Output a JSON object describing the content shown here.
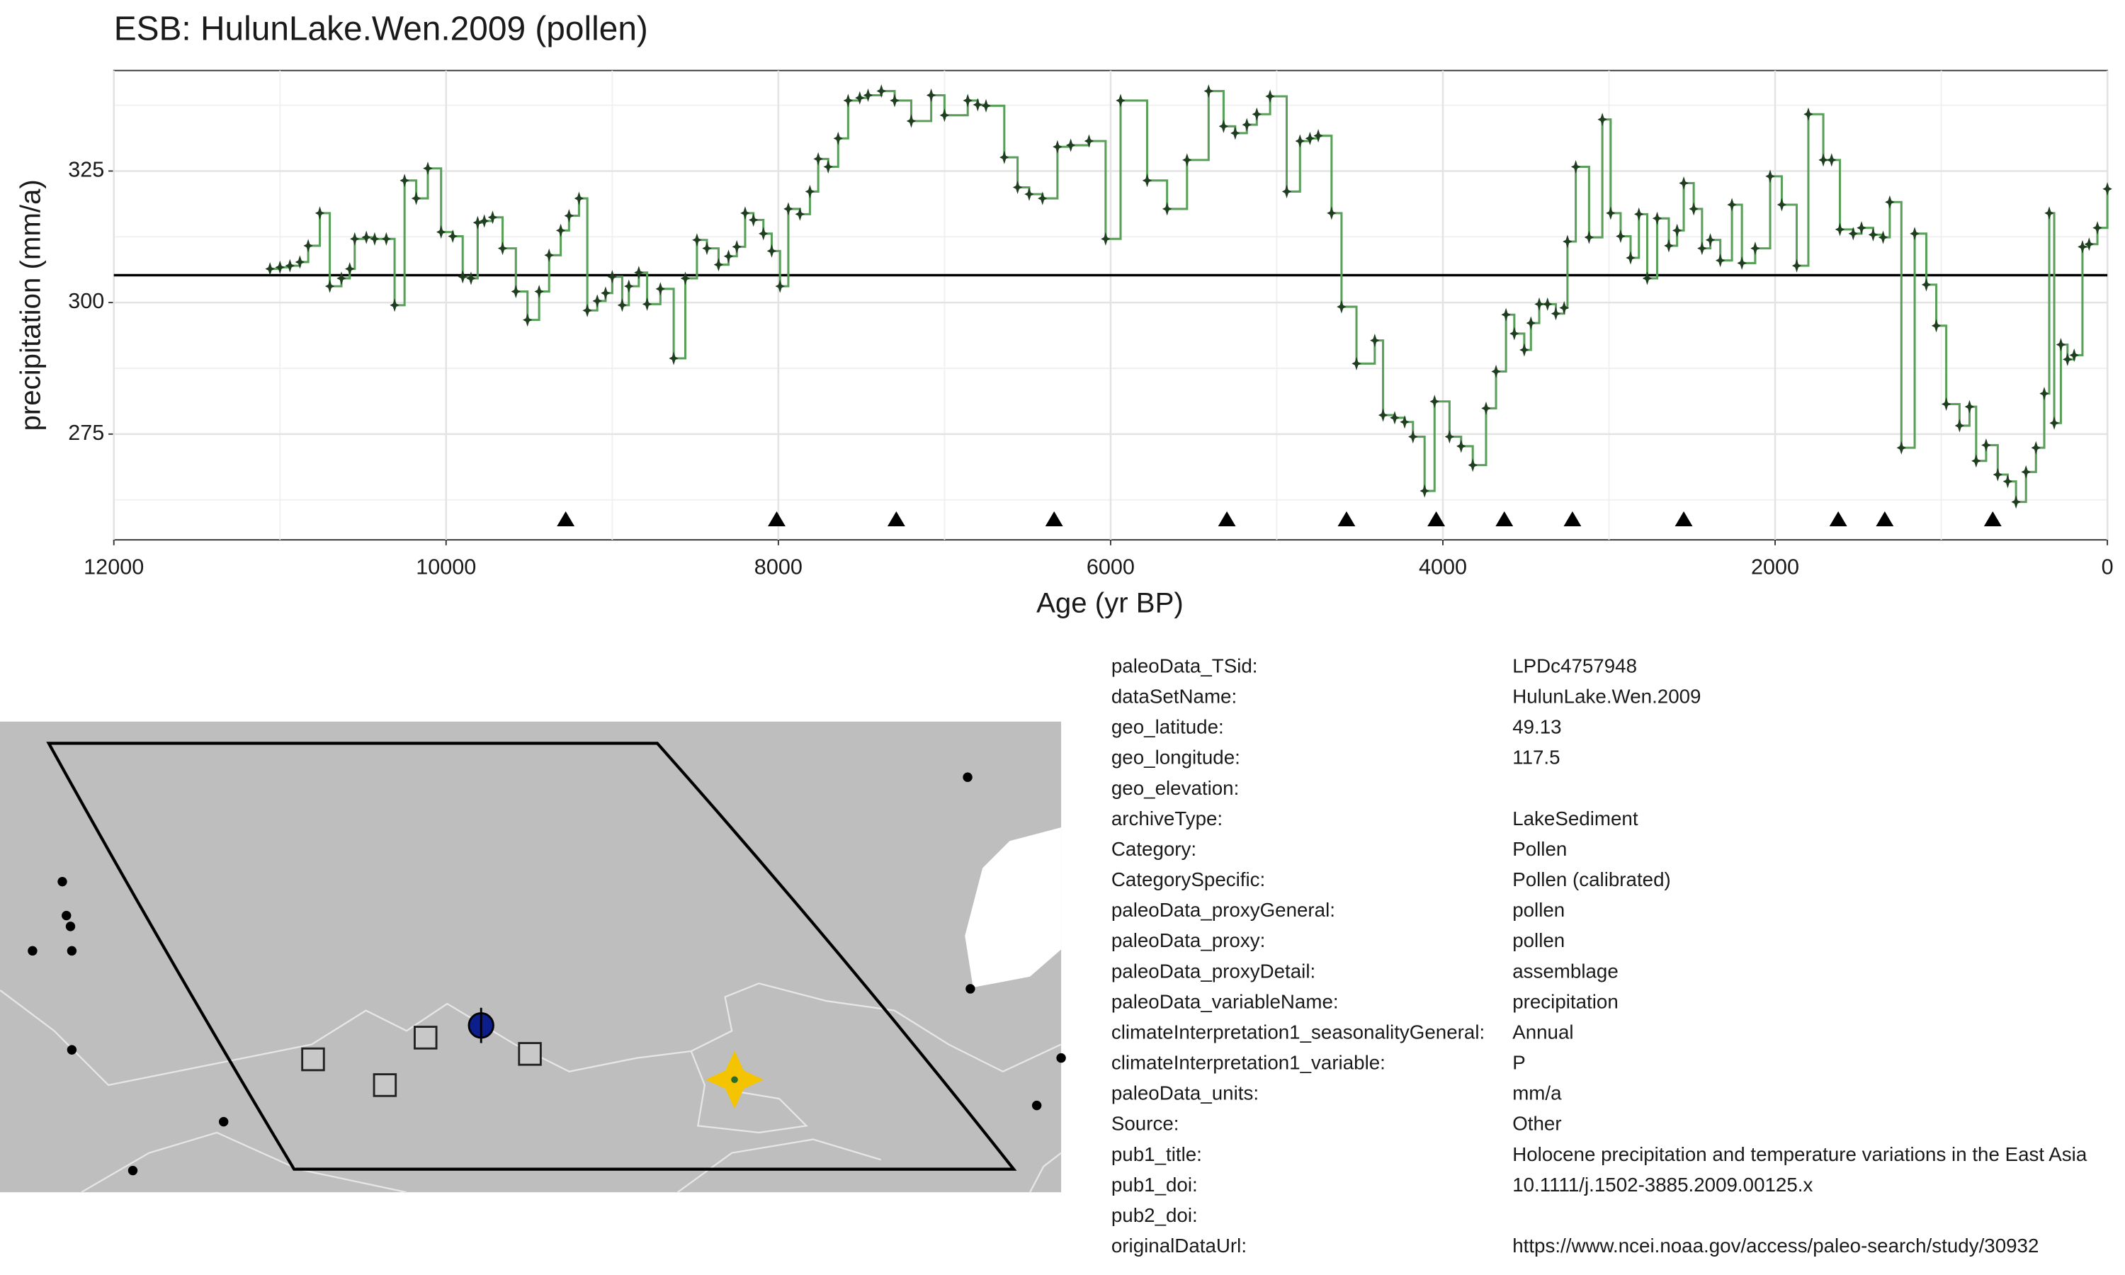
{
  "chart_data": {
    "type": "step",
    "title": "ESB: HulunLake.Wen.2009 (pollen)",
    "x_label": "Age (yr BP)",
    "y_label": "precipitation (mm/a)",
    "xlim": [
      12000,
      0
    ],
    "ylim": [
      254.9,
      344.1
    ],
    "xticks": [
      12000,
      10000,
      8000,
      6000,
      4000,
      2000,
      0
    ],
    "yticks": [
      275,
      300,
      325
    ],
    "grid": true,
    "color": "#5aa05a",
    "marker_color": "#1f3d1f",
    "hline": 305.2,
    "chronology_ages": [
      9280,
      8010,
      7290,
      6340,
      5300,
      4580,
      4040,
      3630,
      3220,
      2550,
      1620,
      1340,
      690
    ],
    "x": [
      11060,
      11000,
      10940,
      10880,
      10830,
      10760,
      10700,
      10630,
      10580,
      10550,
      10480,
      10430,
      10360,
      10310,
      10250,
      10180,
      10110,
      10030,
      9960,
      9900,
      9850,
      9810,
      9770,
      9720,
      9660,
      9580,
      9510,
      9440,
      9380,
      9310,
      9260,
      9200,
      9150,
      9090,
      9040,
      9000,
      8940,
      8900,
      8840,
      8790,
      8710,
      8630,
      8560,
      8490,
      8430,
      8360,
      8300,
      8250,
      8200,
      8150,
      8090,
      8040,
      7990,
      7940,
      7870,
      7810,
      7760,
      7700,
      7640,
      7580,
      7510,
      7460,
      7380,
      7300,
      7200,
      7080,
      7000,
      6860,
      6800,
      6750,
      6640,
      6560,
      6490,
      6410,
      6320,
      6240,
      6130,
      6030,
      5940,
      5780,
      5660,
      5540,
      5410,
      5320,
      5250,
      5180,
      5120,
      5040,
      4940,
      4860,
      4800,
      4750,
      4670,
      4610,
      4520,
      4410,
      4360,
      4290,
      4230,
      4180,
      4110,
      4050,
      3960,
      3890,
      3820,
      3740,
      3680,
      3620,
      3570,
      3510,
      3470,
      3420,
      3370,
      3320,
      3270,
      3250,
      3200,
      3120,
      3040,
      2990,
      2930,
      2870,
      2820,
      2770,
      2710,
      2640,
      2590,
      2550,
      2490,
      2440,
      2390,
      2330,
      2260,
      2200,
      2120,
      2030,
      1960,
      1870,
      1800,
      1710,
      1660,
      1610,
      1530,
      1480,
      1410,
      1350,
      1310,
      1240,
      1160,
      1090,
      1030,
      970,
      890,
      830,
      790,
      730,
      660,
      600,
      550,
      490,
      430,
      380,
      350,
      320,
      280,
      240,
      200,
      150,
      110,
      60,
      0
    ],
    "values": [
      306.4,
      306.7,
      307.0,
      307.7,
      310.8,
      317.0,
      303.1,
      304.6,
      306.4,
      312.1,
      312.4,
      312.1,
      312.1,
      299.5,
      323.2,
      319.8,
      325.5,
      313.4,
      312.6,
      304.9,
      304.6,
      315.2,
      315.5,
      316.2,
      310.3,
      302.1,
      296.7,
      302.1,
      309.0,
      313.7,
      316.5,
      319.8,
      298.5,
      300.3,
      301.8,
      304.9,
      299.5,
      303.1,
      305.7,
      299.7,
      302.6,
      289.4,
      304.6,
      311.9,
      310.3,
      307.2,
      308.8,
      310.6,
      317.0,
      315.7,
      313.1,
      309.8,
      303.1,
      317.8,
      316.8,
      321.1,
      327.3,
      325.8,
      331.2,
      338.4,
      338.9,
      339.4,
      340.2,
      338.4,
      334.5,
      339.4,
      335.6,
      338.4,
      337.6,
      337.4,
      327.6,
      321.9,
      320.6,
      319.8,
      329.6,
      329.9,
      330.7,
      312.1,
      338.4,
      323.2,
      317.8,
      327.1,
      340.2,
      333.5,
      332.2,
      333.8,
      335.8,
      339.2,
      321.1,
      330.7,
      331.2,
      331.7,
      317.0,
      299.2,
      288.4,
      292.8,
      278.6,
      278.1,
      277.3,
      274.5,
      264.2,
      281.2,
      274.5,
      272.7,
      269.1,
      279.9,
      286.9,
      297.7,
      294.1,
      291.0,
      296.1,
      299.7,
      299.7,
      297.9,
      299.0,
      311.6,
      325.8,
      312.4,
      334.8,
      317.0,
      312.6,
      308.5,
      316.8,
      304.6,
      316.0,
      310.8,
      313.7,
      322.7,
      317.8,
      310.3,
      311.9,
      308.0,
      318.6,
      307.5,
      310.3,
      324.0,
      318.6,
      307.0,
      335.8,
      327.1,
      327.1,
      313.9,
      313.1,
      314.2,
      312.9,
      312.4,
      319.1,
      272.4,
      313.1,
      303.4,
      295.6,
      280.7,
      276.6,
      280.2,
      269.9,
      272.9,
      267.3,
      266.0,
      262.1,
      267.8,
      272.4,
      282.7,
      317.0,
      277.1,
      292.0,
      289.2,
      290.0,
      310.6,
      311.1,
      314.2,
      321.6
    ]
  },
  "table": {
    "rows": [
      [
        "paleoData_TSid:",
        "LPDc4757948"
      ],
      [
        "dataSetName:",
        "HulunLake.Wen.2009"
      ],
      [
        "geo_latitude:",
        "49.13"
      ],
      [
        "geo_longitude:",
        "117.5"
      ],
      [
        "geo_elevation:"
      ],
      [
        "archiveType:",
        "LakeSediment"
      ],
      [
        "Category:",
        "Pollen"
      ],
      [
        "CategorySpecific:",
        "Pollen (calibrated)"
      ],
      [
        "paleoData_proxyGeneral:",
        "pollen"
      ],
      [
        "paleoData_proxy:",
        "pollen"
      ],
      [
        "paleoData_proxyDetail:",
        "assemblage"
      ],
      [
        "paleoData_variableName:",
        "precipitation"
      ],
      [
        "climateInterpretation1_seasonalityGeneral:",
        "Annual"
      ],
      [
        "climateInterpretation1_variable:",
        "P"
      ],
      [
        "paleoData_units:",
        "mm/a"
      ],
      [
        "Source:",
        "Other"
      ],
      [
        "pub1_title:",
        "Holocene precipitation and temperature variations in the East Asia"
      ],
      [
        "pub1_doi:",
        "10.1111/j.1502-3885.2009.00125.x"
      ],
      [
        "pub2_doi:"
      ],
      [
        "originalDataUrl:",
        "https://www.ncei.noaa.gov/access/paleo-search/study/30932"
      ]
    ]
  }
}
